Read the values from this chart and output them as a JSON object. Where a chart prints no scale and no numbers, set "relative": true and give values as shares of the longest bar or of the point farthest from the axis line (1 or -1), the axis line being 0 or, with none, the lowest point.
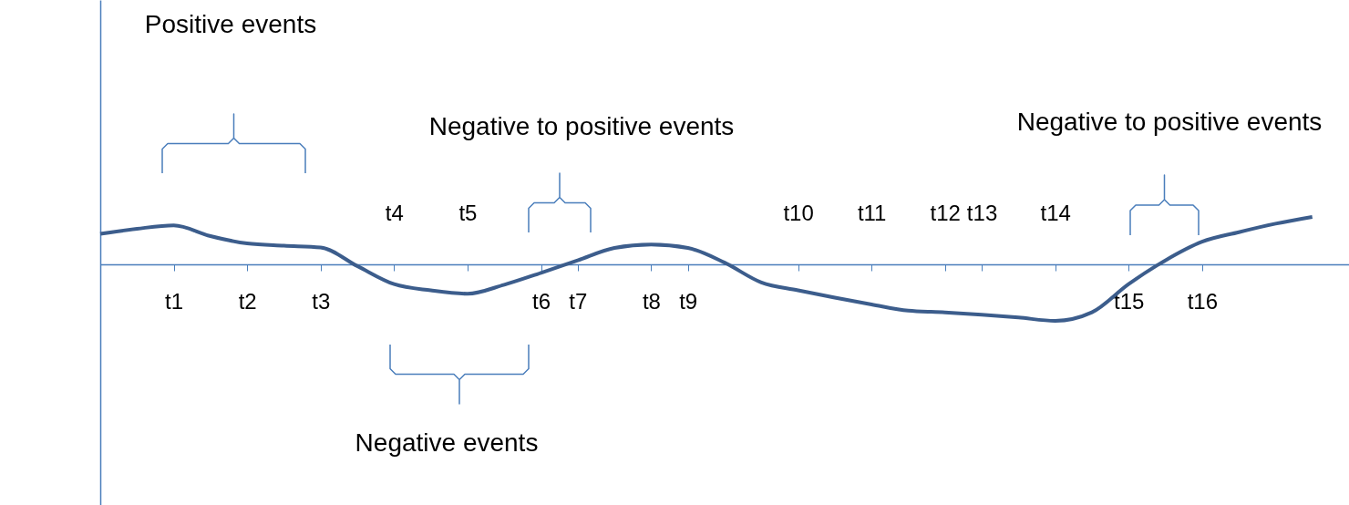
{
  "chart_data": {
    "type": "line",
    "relative": true,
    "categories": [
      null,
      null,
      "t1",
      null,
      "t2",
      null,
      "t3",
      null,
      "t4",
      null,
      "t5",
      null,
      "t6",
      "t7",
      null,
      "t8",
      "t9",
      null,
      null,
      "t10",
      null,
      "t11",
      null,
      "t12",
      "t13",
      null,
      "t14",
      null,
      "t15",
      null,
      "t16",
      null,
      null,
      null,
      null
    ],
    "series": [
      {
        "color": "#3c5d8c",
        "values": [
          0.54,
          0.63,
          0.69,
          0.5,
          0.37,
          0.33,
          0.3,
          -0.03,
          -0.35,
          -0.46,
          -0.52,
          -0.36,
          -0.15,
          0.07,
          0.29,
          0.35,
          0.29,
          0.03,
          -0.32,
          -0.46,
          -0.59,
          -0.71,
          -0.82,
          -0.85,
          -0.89,
          -0.94,
          -1,
          -0.85,
          -0.35,
          0.07,
          0.4,
          0.57,
          0.72,
          0.84,
          null
        ]
      }
    ],
    "annotations": [
      "Positive events",
      "Negative to positive events",
      "Negative events",
      "Negative to positive events"
    ]
  }
}
